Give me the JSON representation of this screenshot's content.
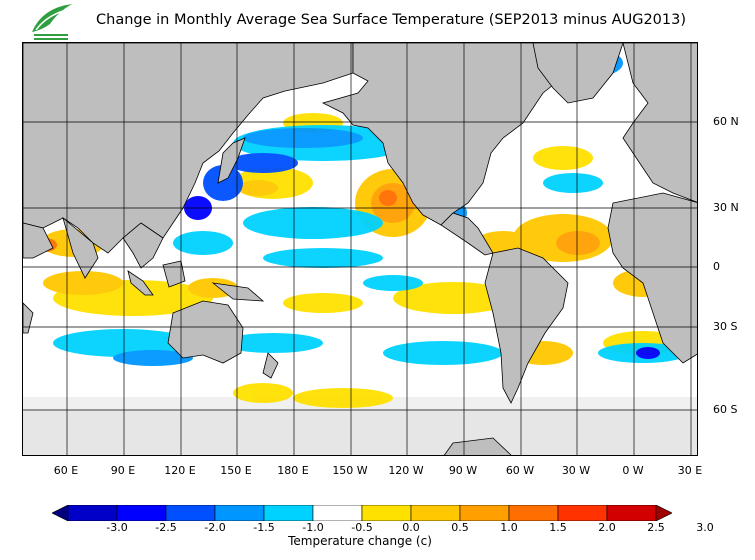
{
  "title": "Change in Monthly Average Sea Surface Temperature (SEP2013 minus AUG2013)",
  "map": {
    "lat_labels": [
      "60 N",
      "30 N",
      "0",
      "30 S",
      "60 S"
    ],
    "lon_labels": [
      "60 E",
      "90 E",
      "120 E",
      "150 E",
      "180 E",
      "150 W",
      "120 W",
      "90 W",
      "60 W",
      "30 W",
      "0 W",
      "30 E"
    ],
    "colors": {
      "land": "#bebebe",
      "ice": "#e6e6e6",
      "ocean_neutral": "#ffffff",
      "coast": "#000000",
      "grid": "#000000"
    }
  },
  "colorbar": {
    "title": "Temperature change  (c)",
    "ticks": [
      "-3.0",
      "-2.5",
      "-2.0",
      "-1.5",
      "-1.0",
      "-0.5",
      "0.0",
      "0.5",
      "1.0",
      "1.5",
      "2.0",
      "2.5",
      "3.0"
    ],
    "colors": [
      "#00007f",
      "#0000c8",
      "#0000ff",
      "#0050ff",
      "#0096ff",
      "#00d2ff",
      "#ffffff",
      "#ffe100",
      "#ffc800",
      "#ffa000",
      "#ff6e00",
      "#ff3200",
      "#d20000",
      "#a00000"
    ]
  }
}
